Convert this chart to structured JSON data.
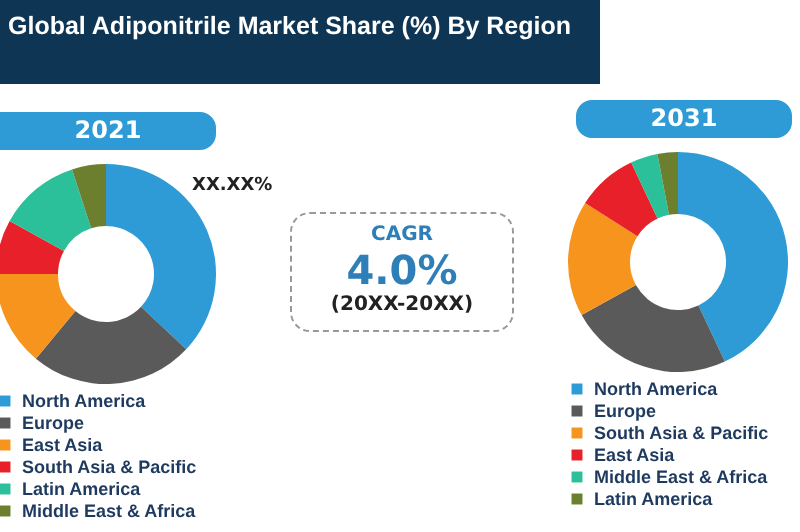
{
  "chart_data": [
    {
      "type": "donut",
      "title": "Global Adiponitrile Market Share (%) By Region",
      "subtitle": "2021",
      "categories": [
        "North America",
        "Europe",
        "East Asia",
        "South Asia & Pacific",
        "Latin America",
        "Middle East & Africa"
      ],
      "values": [
        37,
        24,
        14,
        8,
        12,
        5
      ],
      "colors": [
        "#2e9bd6",
        "#5a5a5a",
        "#f7941d",
        "#e8202a",
        "#2bbf9a",
        "#6b7f2e"
      ],
      "legend": "bottom",
      "annotations": [
        "XX.XX%"
      ]
    },
    {
      "type": "other",
      "annotations": [
        "CAGR",
        "4.0%",
        "(20XX-20XX)"
      ]
    },
    {
      "type": "donut",
      "subtitle": "2031",
      "categories": [
        "North America",
        "Europe",
        "South Asia & Pacific",
        "East Asia",
        "Middle East & Africa",
        "Latin America"
      ],
      "values": [
        43,
        24,
        17,
        9,
        4,
        3
      ],
      "colors": [
        "#2e9bd6",
        "#5a5a5a",
        "#f7941d",
        "#e8202a",
        "#2bbf9a",
        "#6b7f2e"
      ],
      "legend": "bottom"
    }
  ]
}
